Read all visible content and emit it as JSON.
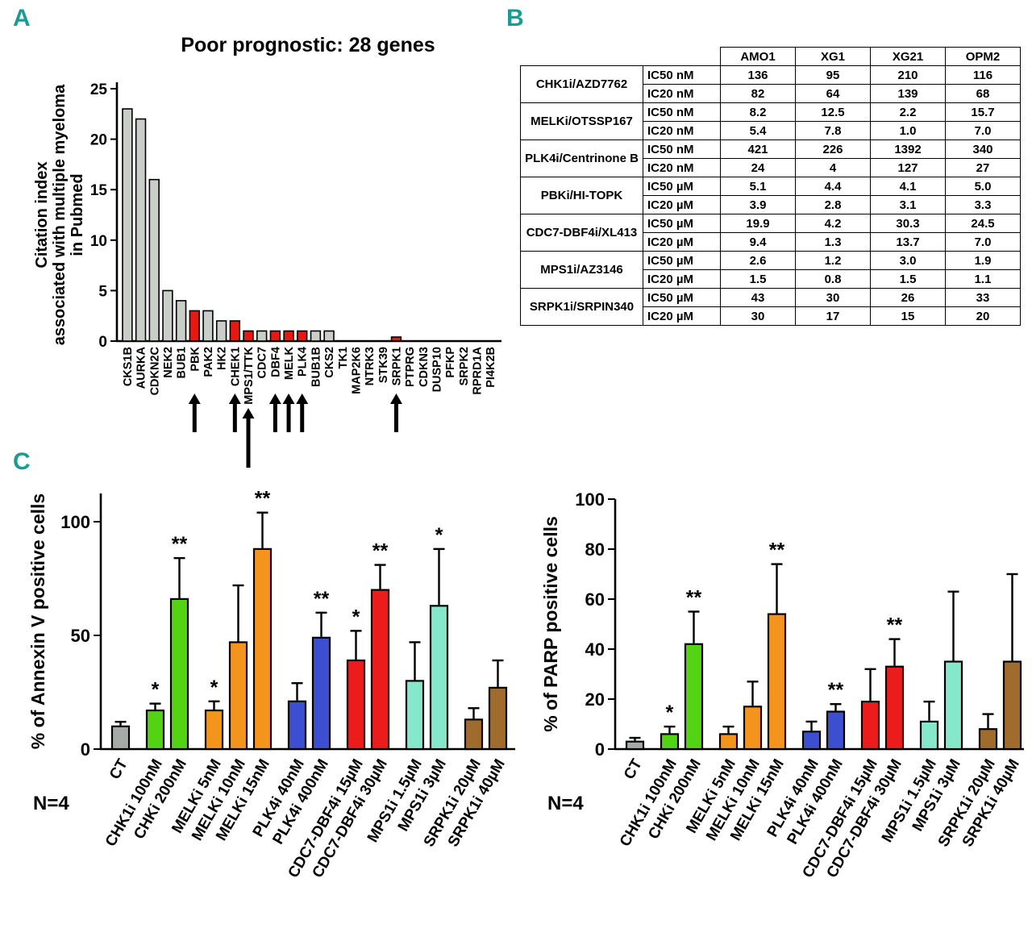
{
  "panel_labels": {
    "a": "A",
    "b": "B",
    "c": "C"
  },
  "accent_color": "#1a9c94",
  "chart_data": [
    {
      "id": "citation",
      "type": "bar",
      "title": "Poor prognostic: 28 genes",
      "ylabel_lines": [
        "Citation index",
        "associated with multiple myeloma",
        "in Pubmed"
      ],
      "ylim": [
        0,
        25
      ],
      "yticks": [
        0,
        5,
        10,
        15,
        20,
        25
      ],
      "grid": false,
      "categories": [
        "CKS1B",
        "AURKA",
        "CDKN2C",
        "NEK2",
        "BUB1",
        "PBK",
        "PAK2",
        "HK2",
        "CHEK1",
        "MPS1/TTK",
        "CDC7",
        "DBF4",
        "MELK",
        "PLK4",
        "BUB1B",
        "CKS2",
        "TK1",
        "MAP2K6",
        "NTRK3",
        "STK39",
        "SRPK1",
        "PTPRG",
        "CDKN3",
        "DUSP10",
        "PFKP",
        "SRPK2",
        "RPRD1A",
        "PI4K2B"
      ],
      "values": [
        23,
        22,
        16,
        5,
        4,
        3,
        3,
        2,
        2,
        1,
        1,
        1,
        1,
        1,
        1,
        1,
        0,
        0,
        0,
        0,
        0.4,
        0,
        0,
        0,
        0,
        0,
        0,
        0
      ],
      "highlight": [
        "PBK",
        "CHEK1",
        "MPS1/TTK",
        "DBF4",
        "MELK",
        "PLK4",
        "SRPK1"
      ],
      "arrows": [
        "PBK",
        "CHEK1",
        "MPS1/TTK",
        "DBF4",
        "MELK",
        "PLK4",
        "SRPK1"
      ],
      "long_arrow": "MPS1/TTK",
      "bar_color": "#c9cec9",
      "highlight_color": "#e8170f"
    },
    {
      "id": "ic-table",
      "type": "table",
      "col_headers": [
        "AMO1",
        "XG1",
        "XG21",
        "OPM2"
      ],
      "row_groups": [
        {
          "drug": "CHK1i/AZD7762",
          "rows": [
            {
              "metric": "IC50 nM",
              "values": [
                "136",
                "95",
                "210",
                "116"
              ]
            },
            {
              "metric": "IC20 nM",
              "values": [
                "82",
                "64",
                "139",
                "68"
              ]
            }
          ]
        },
        {
          "drug": "MELKi/OTSSP167",
          "rows": [
            {
              "metric": "IC50 nM",
              "values": [
                "8.2",
                "12.5",
                "2.2",
                "15.7"
              ]
            },
            {
              "metric": "IC20 nM",
              "values": [
                "5.4",
                "7.8",
                "1.0",
                "7.0"
              ]
            }
          ]
        },
        {
          "drug": "PLK4i/Centrinone B",
          "rows": [
            {
              "metric": "IC50 nM",
              "values": [
                "421",
                "226",
                "1392",
                "340"
              ]
            },
            {
              "metric": "IC20 nM",
              "values": [
                "24",
                "4",
                "127",
                "27"
              ]
            }
          ]
        },
        {
          "drug": "PBKi/HI-TOPK",
          "rows": [
            {
              "metric": "IC50 µM",
              "values": [
                "5.1",
                "4.4",
                "4.1",
                "5.0"
              ]
            },
            {
              "metric": "IC20 µM",
              "values": [
                "3.9",
                "2.8",
                "3.1",
                "3.3"
              ]
            }
          ]
        },
        {
          "drug": "CDC7-DBF4i/XL413",
          "rows": [
            {
              "metric": "IC50 µM",
              "values": [
                "19.9",
                "4.2",
                "30.3",
                "24.5"
              ]
            },
            {
              "metric": "IC20 µM",
              "values": [
                "9.4",
                "1.3",
                "13.7",
                "7.0"
              ]
            }
          ]
        },
        {
          "drug": "MPS1i/AZ3146",
          "rows": [
            {
              "metric": "IC50 µM",
              "values": [
                "2.6",
                "1.2",
                "3.0",
                "1.9"
              ]
            },
            {
              "metric": "IC20 µM",
              "values": [
                "1.5",
                "0.8",
                "1.5",
                "1.1"
              ]
            }
          ]
        },
        {
          "drug": "SRPK1i/SRPIN340",
          "rows": [
            {
              "metric": "IC50 µM",
              "values": [
                "43",
                "30",
                "26",
                "33"
              ]
            },
            {
              "metric": "IC20 µM",
              "values": [
                "30",
                "17",
                "15",
                "20"
              ]
            }
          ]
        }
      ]
    },
    {
      "id": "annexin",
      "type": "bar",
      "ylabel": "% of Annexin V positive cells",
      "n_label": "N=4",
      "ylim": [
        0,
        110
      ],
      "yticks": [
        0,
        50,
        100
      ],
      "grid": false,
      "categories": [
        "CT",
        "CHK1i 100nM",
        "CHKi 200nM",
        "MELKi 5nM",
        "MELKi 10nM",
        "MELKi 15nM",
        "PLK4i 40nM",
        "PLK4i 400nM",
        "CDC7-DBF4i 15µM",
        "CDC7-DBF4i 30µM",
        "MPS1i 1.5µM",
        "MPS1i 3µM",
        "SRPK1i 20µM",
        "SRPK1i 40µM"
      ],
      "groups": [
        0,
        1,
        1,
        2,
        2,
        2,
        3,
        3,
        4,
        4,
        5,
        5,
        6,
        6
      ],
      "values": [
        10,
        17,
        66,
        17,
        47,
        88,
        21,
        49,
        39,
        70,
        30,
        63,
        13,
        27
      ],
      "errors": [
        2,
        3,
        18,
        4,
        25,
        16,
        8,
        11,
        13,
        11,
        17,
        25,
        5,
        12
      ],
      "sig": [
        "",
        "*",
        "**",
        "*",
        "",
        "**",
        "",
        "**",
        "*",
        "**",
        "",
        "*",
        "",
        ""
      ],
      "colors": [
        "#a6aaa6",
        "#52d413",
        "#52d413",
        "#f5941d",
        "#f5941d",
        "#f5941d",
        "#3b4fd0",
        "#3b4fd0",
        "#ed1c1c",
        "#ed1c1c",
        "#85e8ca",
        "#85e8ca",
        "#9f6c2e",
        "#9f6c2e"
      ]
    },
    {
      "id": "parp",
      "type": "bar",
      "ylabel": "% of PARP positive cells",
      "n_label": "N=4",
      "ylim": [
        0,
        100
      ],
      "yticks": [
        0,
        20,
        40,
        60,
        80,
        100
      ],
      "grid": false,
      "categories": [
        "CT",
        "CHK1i 100nM",
        "CHKi 200nM",
        "MELKi 5nM",
        "MELKi 10nM",
        "MELKi 15nM",
        "PLK4i 40nM",
        "PLK4i 400nM",
        "CDC7-DBF4i 15µM",
        "CDC7-DBF4i 30µM",
        "MPS1i 1.5µM",
        "MPS1i 3µM",
        "SRPK1i 20µM",
        "SRPK1i 40µM"
      ],
      "groups": [
        0,
        1,
        1,
        2,
        2,
        2,
        3,
        3,
        4,
        4,
        5,
        5,
        6,
        6
      ],
      "values": [
        3,
        6,
        42,
        6,
        17,
        54,
        7,
        15,
        19,
        33,
        11,
        35,
        8,
        35
      ],
      "errors": [
        1.5,
        3,
        13,
        3,
        10,
        20,
        4,
        3,
        13,
        11,
        8,
        28,
        6,
        35
      ],
      "sig": [
        "",
        "*",
        "**",
        "",
        "",
        "**",
        "",
        "**",
        "",
        "**",
        "",
        "",
        "",
        ""
      ],
      "colors": [
        "#a6aaa6",
        "#52d413",
        "#52d413",
        "#f5941d",
        "#f5941d",
        "#f5941d",
        "#3b4fd0",
        "#3b4fd0",
        "#ed1c1c",
        "#ed1c1c",
        "#85e8ca",
        "#85e8ca",
        "#9f6c2e",
        "#9f6c2e"
      ]
    }
  ]
}
